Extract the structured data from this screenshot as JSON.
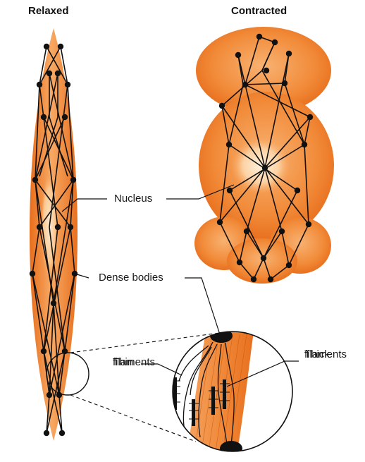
{
  "titles": {
    "relaxed": "Relaxed",
    "contracted": "Contracted"
  },
  "labels": {
    "nucleus": "Nucleus",
    "dense_bodies": "Dense bodies",
    "thin_line1": "Thin",
    "thin_line2": "filaments",
    "thick_line1": "Thick",
    "thick_line2": "filaments"
  },
  "colors": {
    "cell_orange": "#ef7a2a",
    "cell_light": "#f6a35c",
    "nucleus_highlight": "#fde6c9",
    "filament_black": "#111111",
    "background": "#ffffff"
  }
}
